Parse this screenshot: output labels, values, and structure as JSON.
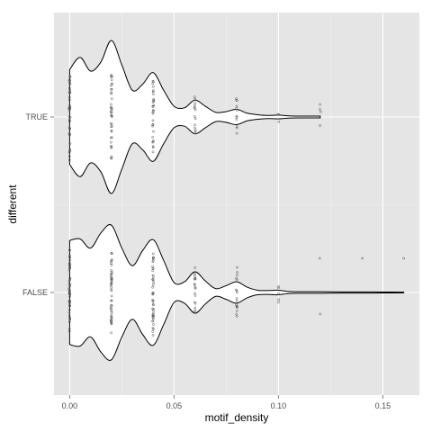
{
  "chart_data": {
    "type": "violin",
    "xlabel": "motif_density",
    "ylabel": "different",
    "xlim": [
      -0.0075,
      0.1675
    ],
    "x_ticks": [
      0.0,
      0.05,
      0.1,
      0.15
    ],
    "x_tick_labels": [
      "0.00",
      "0.05",
      "0.10",
      "0.15"
    ],
    "categories": [
      "FALSE",
      "TRUE"
    ],
    "grid": true,
    "colors": {
      "panel": "#e5e5e5",
      "grid_major": "#ffffff",
      "grid_minor": "#f2f2f2",
      "violin_fill": "#ffffff",
      "violin_line": "#000000",
      "points": "#555555"
    },
    "series": [
      {
        "category": "TRUE",
        "max_x": 0.12,
        "density_profile": [
          [
            0.0,
            0.62
          ],
          [
            0.005,
            0.78
          ],
          [
            0.01,
            0.6
          ],
          [
            0.015,
            0.72
          ],
          [
            0.02,
            1.0
          ],
          [
            0.025,
            0.68
          ],
          [
            0.03,
            0.35
          ],
          [
            0.035,
            0.43
          ],
          [
            0.04,
            0.58
          ],
          [
            0.045,
            0.35
          ],
          [
            0.05,
            0.14
          ],
          [
            0.055,
            0.12
          ],
          [
            0.06,
            0.22
          ],
          [
            0.065,
            0.14
          ],
          [
            0.07,
            0.06
          ],
          [
            0.075,
            0.07
          ],
          [
            0.08,
            0.1
          ],
          [
            0.085,
            0.05
          ],
          [
            0.09,
            0.03
          ],
          [
            0.095,
            0.02
          ],
          [
            0.1,
            0.025
          ],
          [
            0.105,
            0.015
          ],
          [
            0.11,
            0.012
          ],
          [
            0.115,
            0.012
          ],
          [
            0.12,
            0.012
          ]
        ],
        "points": [
          [
            0.0,
            40
          ],
          [
            0.02,
            40
          ],
          [
            0.04,
            30
          ],
          [
            0.06,
            14
          ],
          [
            0.08,
            12
          ],
          [
            0.1,
            3
          ],
          [
            0.12,
            4
          ]
        ]
      },
      {
        "category": "FALSE",
        "max_x": 0.16,
        "density_profile": [
          [
            0.0,
            0.68
          ],
          [
            0.005,
            0.7
          ],
          [
            0.01,
            0.58
          ],
          [
            0.015,
            0.78
          ],
          [
            0.02,
            0.88
          ],
          [
            0.025,
            0.58
          ],
          [
            0.03,
            0.35
          ],
          [
            0.035,
            0.55
          ],
          [
            0.04,
            0.69
          ],
          [
            0.045,
            0.42
          ],
          [
            0.05,
            0.13
          ],
          [
            0.055,
            0.14
          ],
          [
            0.06,
            0.27
          ],
          [
            0.065,
            0.15
          ],
          [
            0.07,
            0.05
          ],
          [
            0.075,
            0.09
          ],
          [
            0.08,
            0.14
          ],
          [
            0.085,
            0.07
          ],
          [
            0.09,
            0.03
          ],
          [
            0.095,
            0.025
          ],
          [
            0.1,
            0.03
          ],
          [
            0.105,
            0.013
          ],
          [
            0.11,
            0.01
          ],
          [
            0.12,
            0.01
          ],
          [
            0.13,
            0.008
          ],
          [
            0.14,
            0.008
          ],
          [
            0.15,
            0.006
          ],
          [
            0.16,
            0.004
          ]
        ],
        "points": [
          [
            0.0,
            50
          ],
          [
            0.02,
            50
          ],
          [
            0.04,
            45
          ],
          [
            0.06,
            18
          ],
          [
            0.08,
            18
          ],
          [
            0.1,
            5
          ],
          [
            0.12,
            2
          ],
          [
            0.14,
            1
          ],
          [
            0.16,
            1
          ]
        ]
      }
    ]
  }
}
